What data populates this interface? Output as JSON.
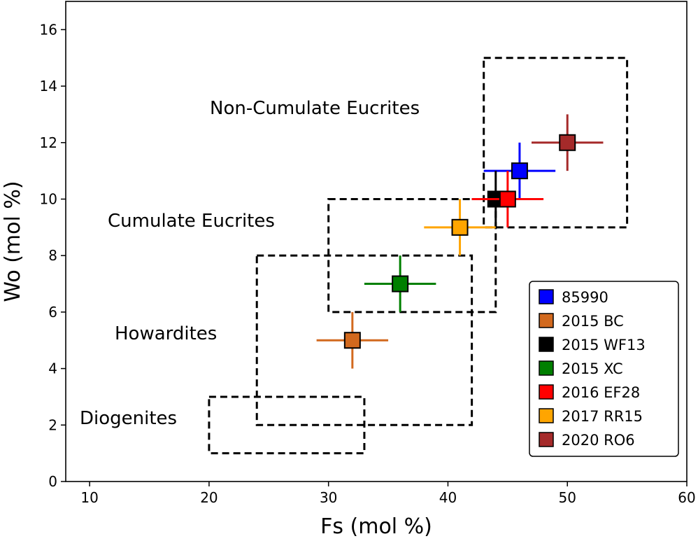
{
  "chart_data": {
    "type": "scatter",
    "title": "",
    "xlabel": "Fs (mol %)",
    "ylabel": "Wo (mol %)",
    "xlim": [
      8,
      60
    ],
    "ylim": [
      0,
      17
    ],
    "x_ticks": [
      10,
      20,
      30,
      40,
      50,
      60
    ],
    "y_ticks": [
      0,
      2,
      4,
      6,
      8,
      10,
      12,
      14,
      16
    ],
    "grid": false,
    "legend_position": "bottom-right",
    "series": [
      {
        "name": "85990",
        "color": "#0000ff",
        "x": 46,
        "y": 11,
        "x_err": 3,
        "y_err": 1
      },
      {
        "name": "2015 BC",
        "color": "#d2691e",
        "x": 32,
        "y": 5,
        "x_err": 3,
        "y_err": 1
      },
      {
        "name": "2015 WF13",
        "color": "#000000",
        "x": 44,
        "y": 10,
        "x_err": 2,
        "y_err": 1
      },
      {
        "name": "2015 XC",
        "color": "#007f00",
        "x": 36,
        "y": 7,
        "x_err": 3,
        "y_err": 1
      },
      {
        "name": "2016 EF28",
        "color": "#ff0000",
        "x": 45,
        "y": 10,
        "x_err": 3,
        "y_err": 1
      },
      {
        "name": "2017 RR15",
        "color": "#ffa500",
        "x": 41,
        "y": 9,
        "x_err": 3,
        "y_err": 1
      },
      {
        "name": "2020 RO6",
        "color": "#a52a2a",
        "x": 50,
        "y": 12,
        "x_err": 3,
        "y_err": 1
      }
    ],
    "regions": [
      {
        "name": "Diogenites",
        "x_range": [
          20,
          33
        ],
        "y_range": [
          1,
          3
        ]
      },
      {
        "name": "Howardites",
        "x_range": [
          24,
          42
        ],
        "y_range": [
          2,
          8
        ]
      },
      {
        "name": "Cumulate Eucrites",
        "x_range": [
          30,
          44
        ],
        "y_range": [
          6,
          10
        ]
      },
      {
        "name": "Non-Cumulate Eucrites",
        "x_range": [
          43,
          55
        ],
        "y_range": [
          9,
          15
        ]
      }
    ]
  }
}
